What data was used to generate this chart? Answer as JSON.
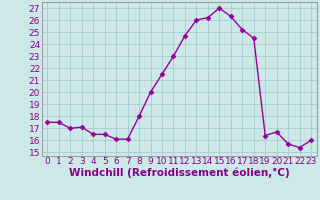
{
  "x": [
    0,
    1,
    2,
    3,
    4,
    5,
    6,
    7,
    8,
    9,
    10,
    11,
    12,
    13,
    14,
    15,
    16,
    17,
    18,
    19,
    20,
    21,
    22,
    23
  ],
  "y": [
    17.5,
    17.5,
    17.0,
    17.1,
    16.5,
    16.5,
    16.1,
    16.1,
    18.0,
    20.0,
    21.5,
    23.0,
    24.7,
    26.0,
    26.2,
    27.0,
    26.3,
    25.2,
    24.5,
    16.4,
    16.7,
    15.7,
    15.4,
    16.0
  ],
  "line_color": "#990099",
  "marker": "D",
  "marker_size": 2.5,
  "bg_color": "#cce8e8",
  "grid_color": "#aacccc",
  "ylabel_ticks": [
    15,
    16,
    17,
    18,
    19,
    20,
    21,
    22,
    23,
    24,
    25,
    26,
    27
  ],
  "xlabel_ticks": [
    0,
    1,
    2,
    3,
    4,
    5,
    6,
    7,
    8,
    9,
    10,
    11,
    12,
    13,
    14,
    15,
    16,
    17,
    18,
    19,
    20,
    21,
    22,
    23
  ],
  "ylim": [
    14.7,
    27.5
  ],
  "xlim": [
    -0.5,
    23.5
  ],
  "xlabel": "Windchill (Refroidissement éolien,°C)",
  "tick_color": "#880088",
  "tick_fontsize": 6.5,
  "xlabel_fontsize": 7.5,
  "spine_color": "#999999",
  "line_width": 1.0
}
